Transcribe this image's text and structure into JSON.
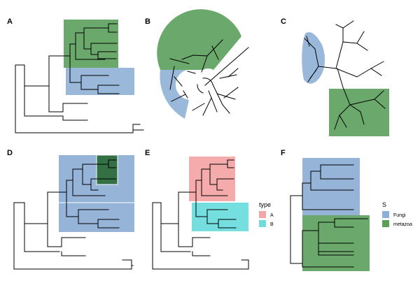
{
  "panels": {
    "a": {
      "label": "A"
    },
    "b": {
      "label": "B"
    },
    "c": {
      "label": "C"
    },
    "d": {
      "label": "D"
    },
    "e": {
      "label": "E"
    },
    "f": {
      "label": "F"
    }
  },
  "legend_e": {
    "title": "type",
    "items": [
      {
        "label": "A",
        "color": "#f4a6a6"
      },
      {
        "label": "B",
        "color": "#6edcdc"
      }
    ]
  },
  "legend_f": {
    "title": "S",
    "items": [
      {
        "label": "Fungi",
        "color": "#8fb0d6"
      },
      {
        "label": "metazoa",
        "color": "#5b9f5b"
      }
    ]
  },
  "colors": {
    "green": "#5b9f5b",
    "blue": "#8fb0d6",
    "dark_green": "#2e6e3e",
    "pink": "#f4a6a6",
    "cyan": "#6edcdc"
  }
}
